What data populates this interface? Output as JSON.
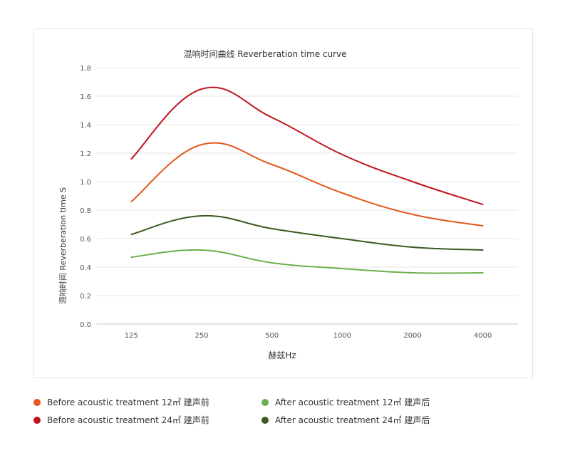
{
  "chart_data": {
    "type": "line",
    "title": "混响时间曲线 Reverberation time curve",
    "xlabel": "赫兹Hz",
    "ylabel": "混响时间  Reverberation time  S",
    "categories": [
      "125",
      "250",
      "500",
      "1000",
      "2000",
      "4000"
    ],
    "ylim": [
      0,
      1.8
    ],
    "yticks": [
      "0.0",
      "0.2",
      "0.4",
      "0.6",
      "0.8",
      "1.0",
      "1.2",
      "1.4",
      "1.6",
      "1.8"
    ],
    "grid": true,
    "legend_position": "bottom",
    "series": [
      {
        "name": "Before acoustic treatment 12㎡ 建声前",
        "color": "#e2581c",
        "values": [
          0.86,
          1.26,
          1.12,
          0.92,
          0.77,
          0.69
        ]
      },
      {
        "name": "Before acoustic treatment 24㎡ 建声前",
        "color": "#c0121c",
        "values": [
          1.16,
          1.65,
          1.45,
          1.19,
          1.0,
          0.84
        ]
      },
      {
        "name": "After acoustic treatment 12㎡ 建声后",
        "color": "#6ab04c",
        "values": [
          0.47,
          0.52,
          0.43,
          0.39,
          0.36,
          0.36
        ]
      },
      {
        "name": "After acoustic treatment 24㎡ 建声后",
        "color": "#3a5a22",
        "values": [
          0.63,
          0.76,
          0.67,
          0.6,
          0.54,
          0.52
        ]
      }
    ]
  }
}
